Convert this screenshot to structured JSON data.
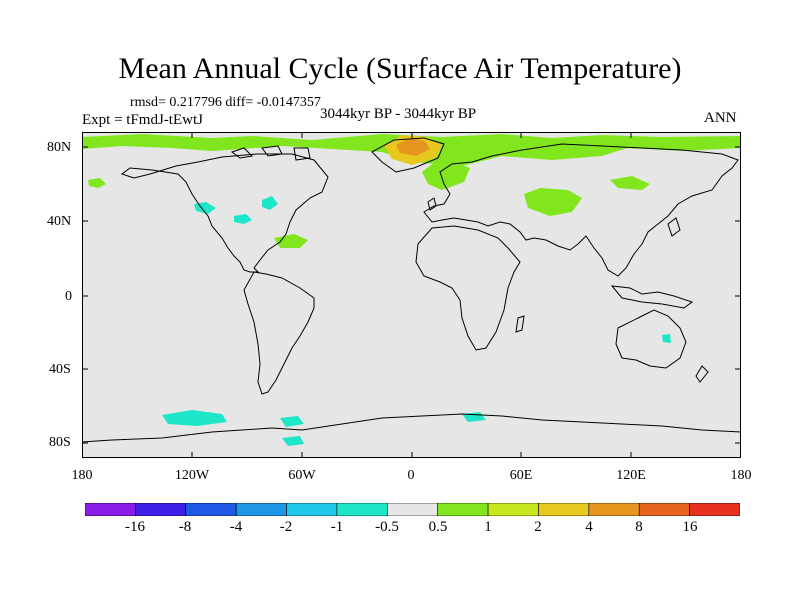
{
  "title": "Mean Annual Cycle (Surface Air Temperature)",
  "stats": "rmsd= 0.217796 diff= -0.0147357",
  "experiment": "Expt = tFmdJ-tEwtJ",
  "period": "3044kyr BP - 3044kyr BP",
  "season": "ANN",
  "y_axis_labels": [
    "80N",
    "40N",
    "0",
    "40S",
    "80S"
  ],
  "x_axis_labels": [
    "180",
    "120W",
    "60W",
    "0",
    "60E",
    "120E",
    "180"
  ],
  "colorbar": {
    "colors": [
      "#8a1ee6",
      "#3c1ee6",
      "#1e5ae6",
      "#1e96e6",
      "#1ec8e6",
      "#1ee6c8",
      "#e6e6e6",
      "#82e61e",
      "#c8e61e",
      "#e6c81e",
      "#e6961e",
      "#e6641e",
      "#e6321e"
    ],
    "labels": [
      "-16",
      "-8",
      "-4",
      "-2",
      "-1",
      "-0.5",
      "0.5",
      "1",
      "2",
      "4",
      "8",
      "16"
    ]
  },
  "map_colors": {
    "background": "#e6e6e6",
    "warm_light": "#82e61e",
    "warm_mid": "#e6c81e",
    "warm_strong": "#e6961e",
    "cool_light": "#1ee6c8"
  }
}
